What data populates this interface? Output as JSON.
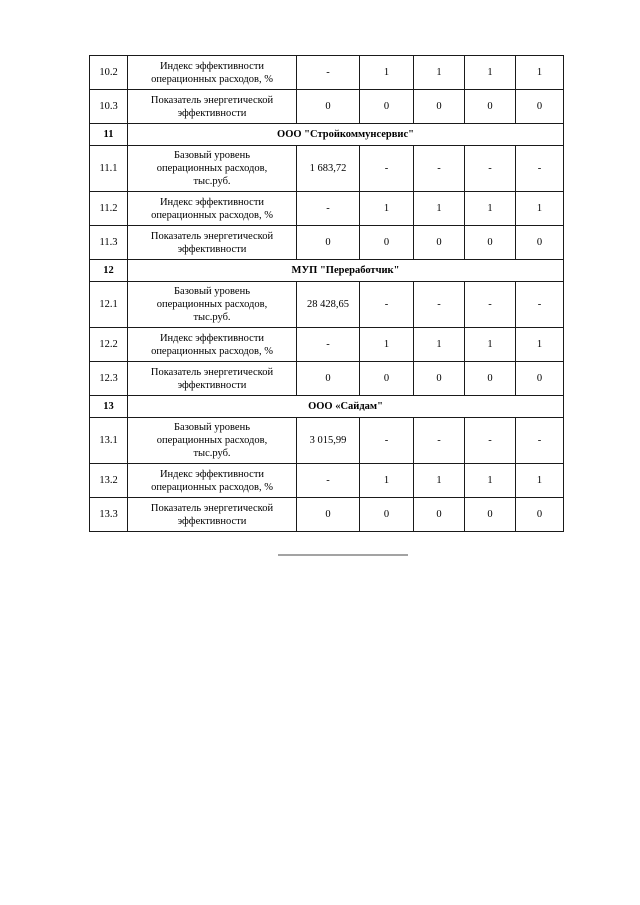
{
  "table": {
    "rows": [
      {
        "type": "data",
        "num": "10.2",
        "label": "Индекс эффективности\nоперационных расходов, %",
        "values": [
          "-",
          "1",
          "1",
          "1",
          "1"
        ]
      },
      {
        "type": "data",
        "num": "10.3",
        "label": "Показатель энергетической\nэффективности",
        "values": [
          "0",
          "0",
          "0",
          "0",
          "0"
        ]
      },
      {
        "type": "section",
        "num": "11",
        "title": "ООО \"Стройкоммунсервис\""
      },
      {
        "type": "data",
        "num": "11.1",
        "label": "Базовый уровень\nоперационных расходов,\nтыс.руб.",
        "values": [
          "1 683,72",
          "-",
          "-",
          "-",
          "-"
        ]
      },
      {
        "type": "data",
        "num": "11.2",
        "label": "Индекс эффективности\nоперационных расходов, %",
        "values": [
          "-",
          "1",
          "1",
          "1",
          "1"
        ]
      },
      {
        "type": "data",
        "num": "11.3",
        "label": "Показатель энергетической\nэффективности",
        "values": [
          "0",
          "0",
          "0",
          "0",
          "0"
        ]
      },
      {
        "type": "section",
        "num": "12",
        "title": "МУП \"Переработчик\""
      },
      {
        "type": "data",
        "num": "12.1",
        "label": "Базовый уровень\nоперационных расходов,\nтыс.руб.",
        "values": [
          "28 428,65",
          "-",
          "-",
          "-",
          "-"
        ]
      },
      {
        "type": "data",
        "num": "12.2",
        "label": "Индекс эффективности\nоперационных расходов, %",
        "values": [
          "-",
          "1",
          "1",
          "1",
          "1"
        ]
      },
      {
        "type": "data",
        "num": "12.3",
        "label": "Показатель энергетической\nэффективности",
        "values": [
          "0",
          "0",
          "0",
          "0",
          "0"
        ]
      },
      {
        "type": "section",
        "num": "13",
        "title": "ООО «Сайдам\""
      },
      {
        "type": "data",
        "num": "13.1",
        "label": "Базовый уровень\nоперационных расходов,\nтыс.руб.",
        "values": [
          "3 015,99",
          "-",
          "-",
          "-",
          "-"
        ]
      },
      {
        "type": "data",
        "num": "13.2",
        "label": "Индекс эффективности\nоперационных расходов, %",
        "values": [
          "-",
          "1",
          "1",
          "1",
          "1"
        ]
      },
      {
        "type": "data",
        "num": "13.3",
        "label": "Показатель энергетической\nэффективности",
        "values": [
          "0",
          "0",
          "0",
          "0",
          "0"
        ]
      }
    ]
  }
}
